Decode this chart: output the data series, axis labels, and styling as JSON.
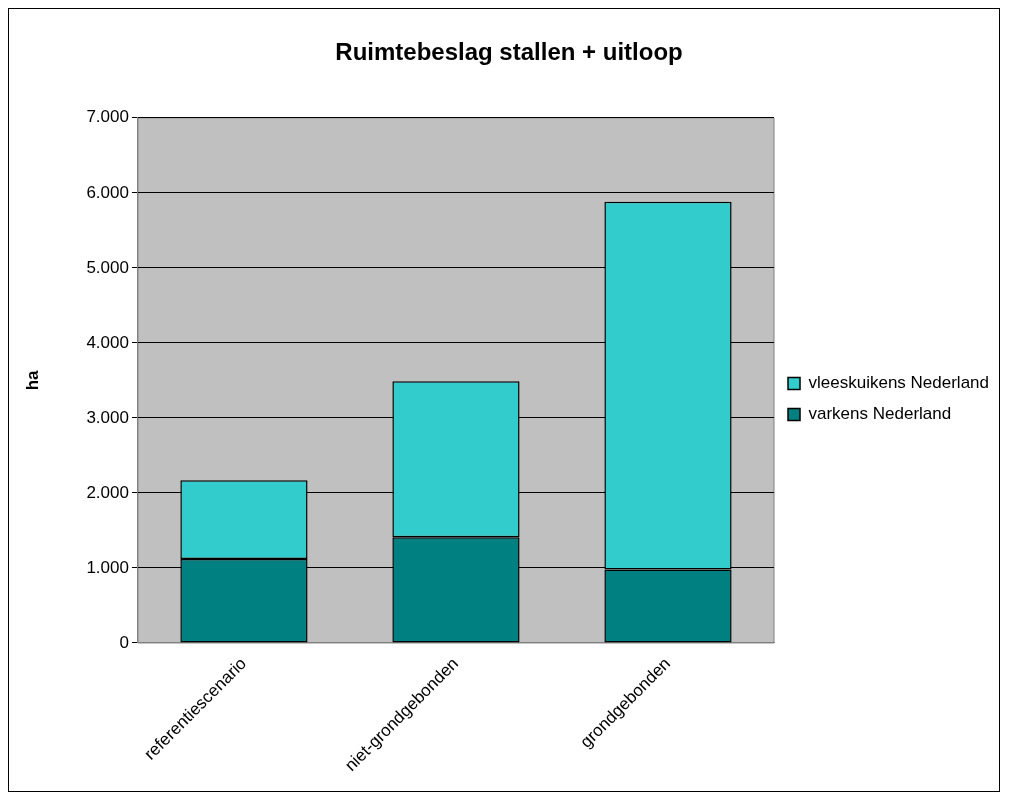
{
  "chart_data": {
    "type": "bar",
    "title": "Ruimtebeslag stallen + uitloop",
    "ylabel": "ha",
    "categories": [
      "referentiescenario",
      "niet-grondgebonden",
      "grondgebonden"
    ],
    "stacked": true,
    "series": [
      {
        "name": "varkens Nederland",
        "color": "#008080",
        "values": [
          1120,
          1410,
          980
        ]
      },
      {
        "name": "vleeskuikens Nederland",
        "color": "#33cccc",
        "values": [
          1050,
          2080,
          4900
        ]
      }
    ],
    "ylim": [
      0,
      7000
    ],
    "yticks": [
      {
        "value": 0,
        "label": "0"
      },
      {
        "value": 1000,
        "label": "1.000"
      },
      {
        "value": 2000,
        "label": "2.000"
      },
      {
        "value": 3000,
        "label": "3.000"
      },
      {
        "value": 4000,
        "label": "4.000"
      },
      {
        "value": 5000,
        "label": "5.000"
      },
      {
        "value": 6000,
        "label": "6.000"
      },
      {
        "value": 7000,
        "label": "7.000"
      }
    ],
    "grid": "y",
    "legend": "right"
  }
}
